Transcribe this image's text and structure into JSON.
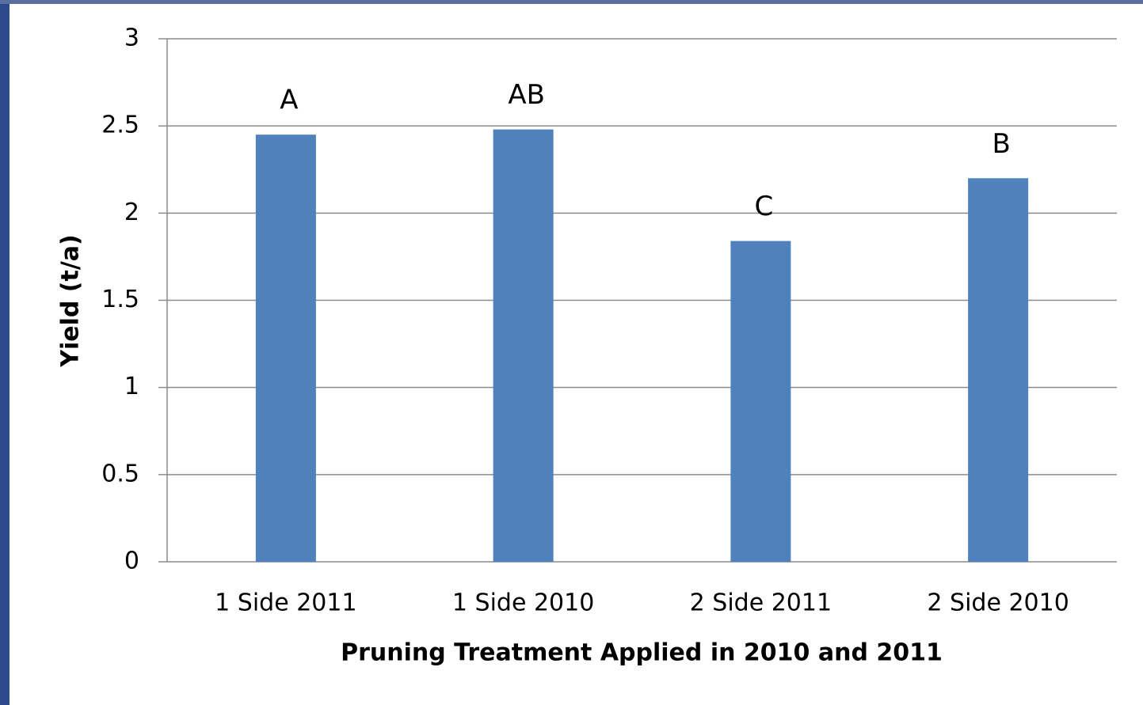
{
  "chart_data": {
    "type": "bar",
    "x_label": "Pruning Treatment Applied in 2010 and 2011",
    "y_label": "Yield (t/a)",
    "categories": [
      "1 Side 2011",
      "1 Side 2010",
      "2 Side 2011",
      "2 Side 2010"
    ],
    "values": [
      2.45,
      2.48,
      1.84,
      2.2
    ],
    "annotations": [
      "A",
      "AB",
      "C",
      "B"
    ],
    "color": "#4f81bd",
    "ylim": [
      0,
      3
    ],
    "yticks": [
      0,
      0.5,
      1,
      1.5,
      2,
      2.5,
      3
    ],
    "grid": true
  }
}
